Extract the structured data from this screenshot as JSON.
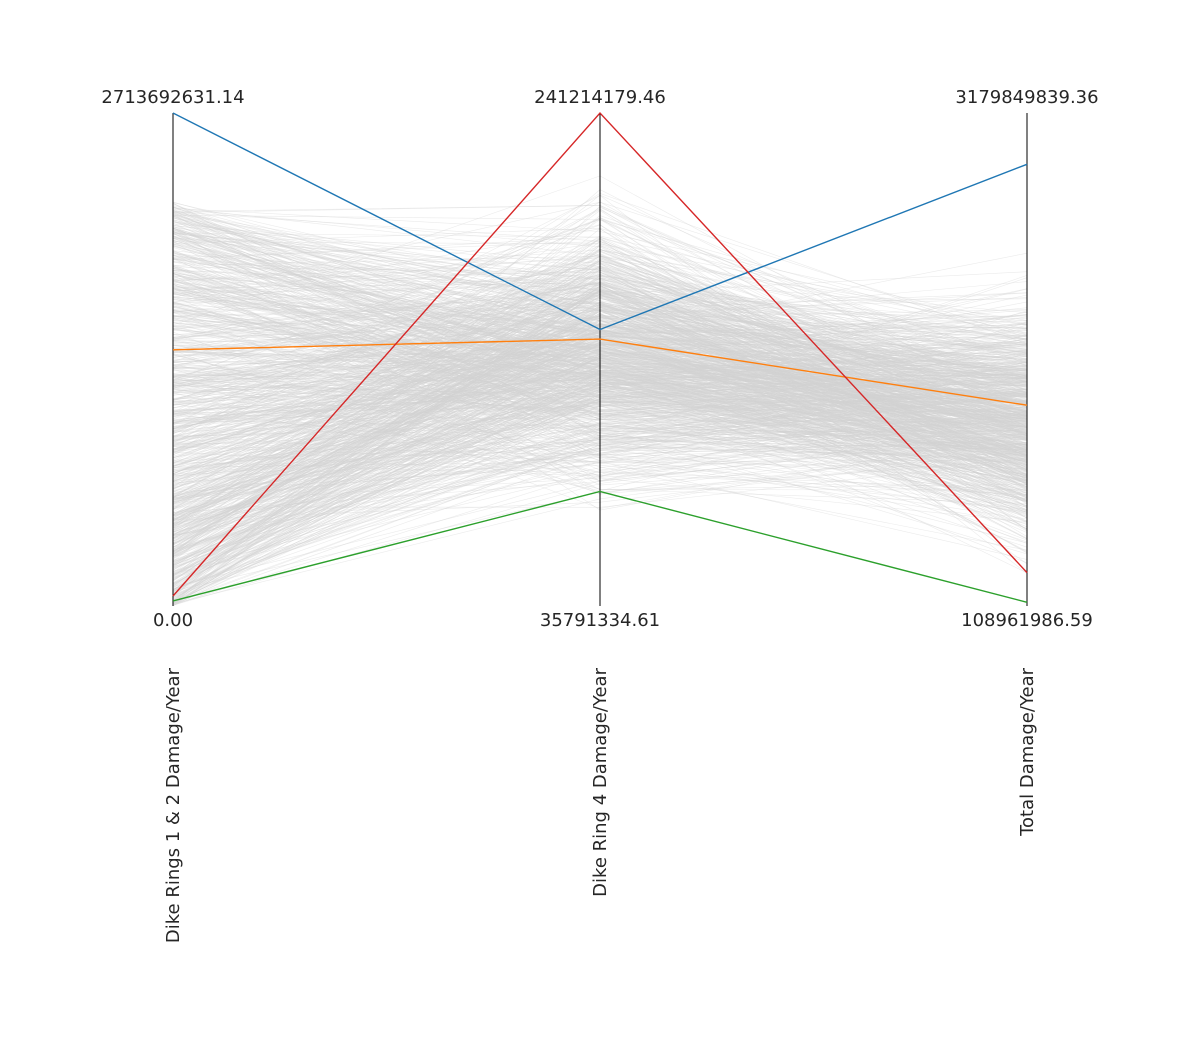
{
  "chart_data": {
    "type": "parallel-coordinates",
    "axes": [
      {
        "label": "Dike Rings 1 & 2 Damage/Year",
        "min": 0.0,
        "max": 2713692631.14,
        "min_label": "0.00",
        "max_label": "2713692631.14"
      },
      {
        "label": "Dike Ring 4 Damage/Year",
        "min": 35791334.61,
        "max": 241214179.46,
        "min_label": "35791334.61",
        "max_label": "241214179.46"
      },
      {
        "label": "Total Damage/Year",
        "min": 108961986.59,
        "max": 3179849839.36,
        "min_label": "108961986.59",
        "max_label": "3179849839.36"
      }
    ],
    "highlighted_lines": [
      {
        "color": "#1f77b4",
        "values": [
          2713692631.14,
          151000000.0,
          2860000000.0
        ]
      },
      {
        "color": "#ff7f0e",
        "values": [
          1410000000.0,
          147000000.0,
          1360000000.0
        ]
      },
      {
        "color": "#2ca02c",
        "values": [
          28000000.0,
          83500000.0,
          132000000.0
        ]
      },
      {
        "color": "#d62728",
        "values": [
          55000000.0,
          241214179.46,
          317000000.0
        ]
      }
    ],
    "background_lines": {
      "color": "#d3d3d3",
      "count": 1000
    },
    "grid": false,
    "legend": "none"
  }
}
